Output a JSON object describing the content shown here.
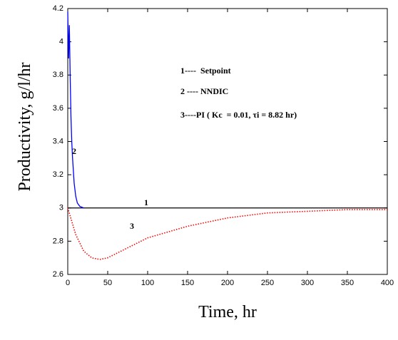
{
  "chart_data": {
    "type": "line",
    "x_label": "Time, hr",
    "y_label": "Productivity, g/l/hr",
    "xlim": [
      0,
      400
    ],
    "ylim": [
      2.6,
      4.2
    ],
    "xticks": [
      0,
      50,
      100,
      150,
      200,
      250,
      300,
      350,
      400
    ],
    "yticks": [
      2.6,
      2.8,
      3,
      3.2,
      3.4,
      3.6,
      3.8,
      4,
      4.2
    ],
    "series": [
      {
        "name": "1",
        "color": "#000000",
        "dash": "solid",
        "x": [
          0,
          400
        ],
        "values": [
          3,
          3
        ]
      },
      {
        "name": "2",
        "color": "#0000ff",
        "dash": "solid",
        "x": [
          0,
          1,
          2,
          3,
          4,
          5,
          6,
          8,
          10,
          12,
          15,
          20
        ],
        "values": [
          4.18,
          3.9,
          4.1,
          3.8,
          3.55,
          3.4,
          3.3,
          3.15,
          3.07,
          3.03,
          3.01,
          3.0
        ]
      },
      {
        "name": "3",
        "color": "#ff0000",
        "dash": "dotted",
        "x": [
          0,
          5,
          10,
          20,
          30,
          40,
          50,
          75,
          100,
          150,
          200,
          250,
          300,
          350,
          400
        ],
        "values": [
          3.0,
          2.92,
          2.84,
          2.74,
          2.7,
          2.69,
          2.7,
          2.76,
          2.82,
          2.89,
          2.94,
          2.97,
          2.98,
          2.99,
          2.99
        ]
      }
    ],
    "annotations": [
      "1----  Setpoint",
      "2 ---- NNDIC",
      "3----PI ( Kc  = 0.01, τi = 8.82 hr)"
    ]
  }
}
